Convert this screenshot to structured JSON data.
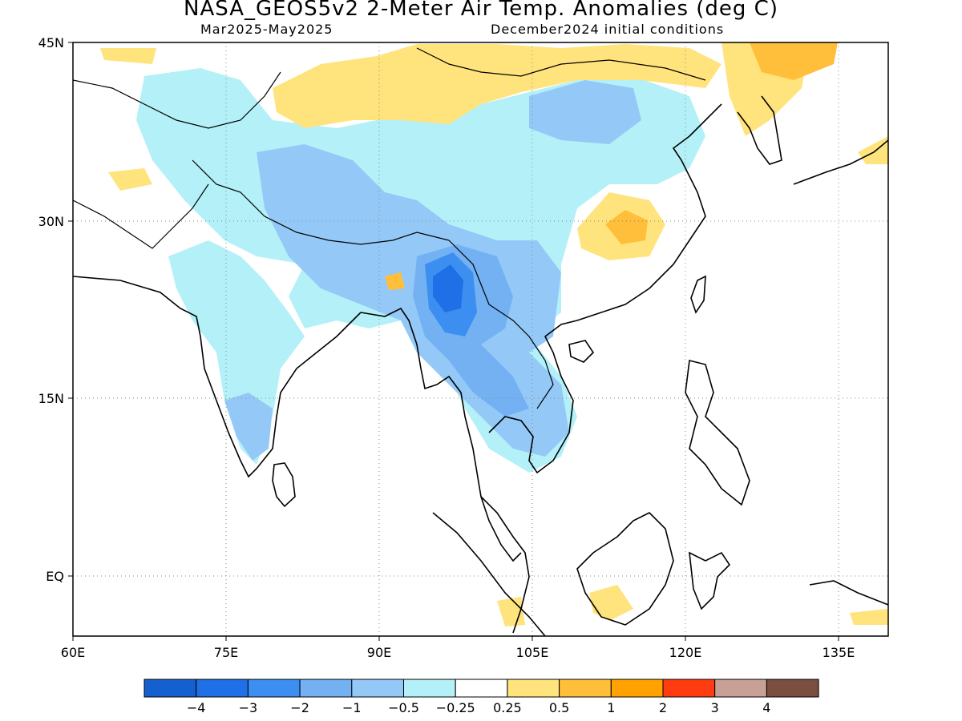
{
  "title": "NASA_GEOS5v2 2-Meter Air Temp. Anomalies (deg C)",
  "subtitle_left": "Mar2025-May2025",
  "subtitle_right": "December2024 initial conditions",
  "map": {
    "lon_range": [
      60,
      140
    ],
    "lat_range": [
      -6,
      45
    ],
    "lon_ticks": [
      "60E",
      "75E",
      "90E",
      "105E",
      "120E",
      "135E"
    ],
    "lat_ticks": [
      "45N",
      "30N",
      "15N",
      "EQ"
    ],
    "gridlines": "dotted"
  },
  "colorbar": {
    "colors": [
      "#1560d0",
      "#1f6fe6",
      "#3c8ff0",
      "#73b1f3",
      "#94c9f7",
      "#b4f0f8",
      "#ffffff",
      "#ffe37c",
      "#ffbf3a",
      "#ffa200",
      "#ff3c10",
      "#c9a095",
      "#7a4e40"
    ],
    "labels": [
      "-4",
      "-3",
      "-2",
      "-1",
      "-0.5",
      "-0.25",
      "0.25",
      "0.5",
      "1",
      "2",
      "3",
      "4"
    ]
  }
}
